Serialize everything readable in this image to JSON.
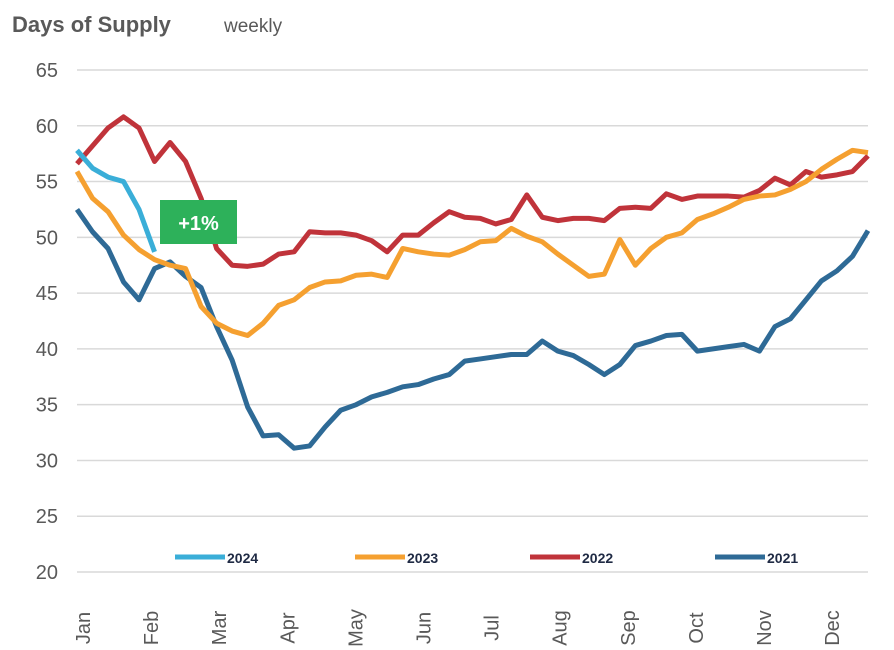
{
  "chart_data": {
    "type": "line",
    "title": "Days of Supply",
    "subtitle": "weekly",
    "xlabel": "",
    "ylabel": "",
    "ylim": [
      20,
      65
    ],
    "yticks": [
      20,
      25,
      30,
      35,
      40,
      45,
      50,
      55,
      60,
      65
    ],
    "months": [
      "Jan",
      "Feb",
      "Mar",
      "Apr",
      "May",
      "Jun",
      "Jul",
      "Aug",
      "Sep",
      "Oct",
      "Nov",
      "Dec"
    ],
    "grid": true,
    "legend_position": "bottom",
    "annotation": {
      "text": "+1%",
      "color": "#2db15a"
    },
    "series": [
      {
        "name": "2024",
        "color": "#3aaed8",
        "values": [
          57.8,
          56.2,
          55.4,
          55.0,
          52.5,
          48.7
        ]
      },
      {
        "name": "2023",
        "color": "#f5a030",
        "values": [
          55.9,
          53.5,
          52.3,
          50.2,
          48.9,
          48.0,
          47.5,
          47.2,
          43.8,
          42.3,
          41.6,
          41.2,
          42.3,
          43.9,
          44.4,
          45.5,
          46.0,
          46.1,
          46.6,
          46.7,
          46.4,
          49.0,
          48.7,
          48.5,
          48.4,
          48.9,
          49.6,
          49.7,
          50.8,
          50.1,
          49.6,
          48.5,
          47.5,
          46.5,
          46.7,
          49.8,
          47.5,
          49.0,
          50.0,
          50.4,
          51.6,
          52.1,
          52.7,
          53.4,
          53.7,
          53.8,
          54.3,
          55.0,
          56.1,
          57.0,
          57.8,
          57.6
        ]
      },
      {
        "name": "2022",
        "color": "#c0333a",
        "values": [
          56.6,
          58.2,
          59.8,
          60.8,
          59.8,
          56.8,
          58.5,
          56.8,
          53.5,
          49.0,
          47.5,
          47.4,
          47.6,
          48.5,
          48.7,
          50.5,
          50.4,
          50.4,
          50.2,
          49.7,
          48.7,
          50.2,
          50.2,
          51.3,
          52.3,
          51.8,
          51.7,
          51.2,
          51.6,
          53.8,
          51.8,
          51.5,
          51.7,
          51.7,
          51.5,
          52.6,
          52.7,
          52.6,
          53.9,
          53.4,
          53.7,
          53.7,
          53.7,
          53.6,
          54.2,
          55.3,
          54.7,
          55.9,
          55.4,
          55.6,
          55.9,
          57.3
        ]
      },
      {
        "name": "2021",
        "color": "#2e6a96",
        "values": [
          52.5,
          50.5,
          49.0,
          46.0,
          44.4,
          47.2,
          47.8,
          46.5,
          45.5,
          42.0,
          39.0,
          34.8,
          32.2,
          32.3,
          31.1,
          31.3,
          33.0,
          34.5,
          35.0,
          35.7,
          36.1,
          36.6,
          36.8,
          37.3,
          37.7,
          38.9,
          39.1,
          39.3,
          39.5,
          39.5,
          40.7,
          39.8,
          39.4,
          38.6,
          37.7,
          38.6,
          40.3,
          40.7,
          41.2,
          41.3,
          39.8,
          40.0,
          40.2,
          40.4,
          39.8,
          42.0,
          42.7,
          44.4,
          46.1,
          47.0,
          48.3,
          50.6
        ]
      }
    ]
  }
}
